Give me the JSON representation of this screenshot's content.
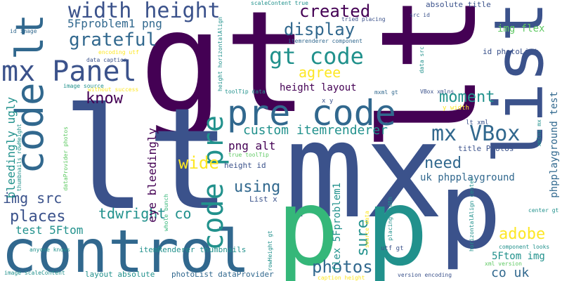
{
  "palette": {
    "background": "#ffffff",
    "dark_purple": "#440154",
    "indigo": "#3b528b",
    "blue": "#31688e",
    "teal": "#21918c",
    "green": "#35b779",
    "light_green": "#5ec962",
    "lime": "#90d743",
    "yellow": "#fde725"
  },
  "words": [
    {
      "text": "gt"
    },
    {
      "text": "lt"
    },
    {
      "text": "mx"
    },
    {
      "text": "lt"
    },
    {
      "text": "control"
    },
    {
      "text": "p"
    },
    {
      "text": "p"
    },
    {
      "text": "list"
    },
    {
      "text": "pre code"
    },
    {
      "text": "code lt"
    },
    {
      "text": "mx Panel"
    },
    {
      "text": "width height"
    },
    {
      "text": "gt code"
    },
    {
      "text": "code pre"
    },
    {
      "text": "mx VBox"
    },
    {
      "text": "photos"
    },
    {
      "text": "created"
    },
    {
      "text": "display"
    },
    {
      "text": "grateful"
    },
    {
      "text": "agree"
    },
    {
      "text": "moment"
    },
    {
      "text": "need"
    },
    {
      "text": "wide"
    },
    {
      "text": "using"
    },
    {
      "text": "places"
    },
    {
      "text": "know"
    },
    {
      "text": "img src"
    },
    {
      "text": "adobe"
    },
    {
      "text": "sure"
    },
    {
      "text": "tdwright co"
    },
    {
      "text": "custom itemrenderer"
    },
    {
      "text": "5Fproblem1 png"
    },
    {
      "text": "png alt"
    },
    {
      "text": "eye bleedingly"
    },
    {
      "text": "bleedingly ugly"
    },
    {
      "text": "test 5Ftom"
    },
    {
      "text": "height layout"
    },
    {
      "text": "img flex"
    },
    {
      "text": "phpplayground test"
    },
    {
      "text": "uk phpplayground"
    },
    {
      "text": "co uk"
    },
    {
      "text": "5Ftom img"
    },
    {
      "text": "flex 5Fproblem1"
    },
    {
      "text": "title Photos"
    },
    {
      "text": "List x"
    },
    {
      "text": "height id"
    },
    {
      "text": "id photoList"
    },
    {
      "text": "absolute title"
    },
    {
      "text": "itemRenderer thumbnails"
    },
    {
      "text": "layout absolute"
    },
    {
      "text": "photoList dataProvider"
    },
    {
      "text": "utf gt"
    },
    {
      "text": "x y"
    },
    {
      "text": "y width"
    },
    {
      "text": "lt xml"
    },
    {
      "text": "source data"
    },
    {
      "text": "scaleContent true"
    },
    {
      "text": "tried placing"
    },
    {
      "text": "src id"
    },
    {
      "text": "itemrenderer component"
    },
    {
      "text": "data src"
    },
    {
      "text": "id image"
    },
    {
      "text": "encoding utf"
    },
    {
      "text": "data caption"
    },
    {
      "text": "image source"
    },
    {
      "text": "without success"
    },
    {
      "text": "height horizontalAlign"
    },
    {
      "text": "toolTip data"
    },
    {
      "text": "mxml gt"
    },
    {
      "text": "VBox xmlns"
    },
    {
      "text": "thumbnails rowHeight"
    },
    {
      "text": "dataProvider photos"
    },
    {
      "text": "true toolTip"
    },
    {
      "text": "whole bunch"
    },
    {
      "text": "anyone knows"
    },
    {
      "text": "rowHeight gt"
    },
    {
      "text": "placing width"
    },
    {
      "text": "horizontalAlign center"
    },
    {
      "text": "center gt"
    },
    {
      "text": "component looks"
    },
    {
      "text": "xml version"
    },
    {
      "text": "xmlns mx"
    },
    {
      "text": "image scaleContent"
    },
    {
      "text": "caption height"
    },
    {
      "text": "version encoding"
    }
  ]
}
